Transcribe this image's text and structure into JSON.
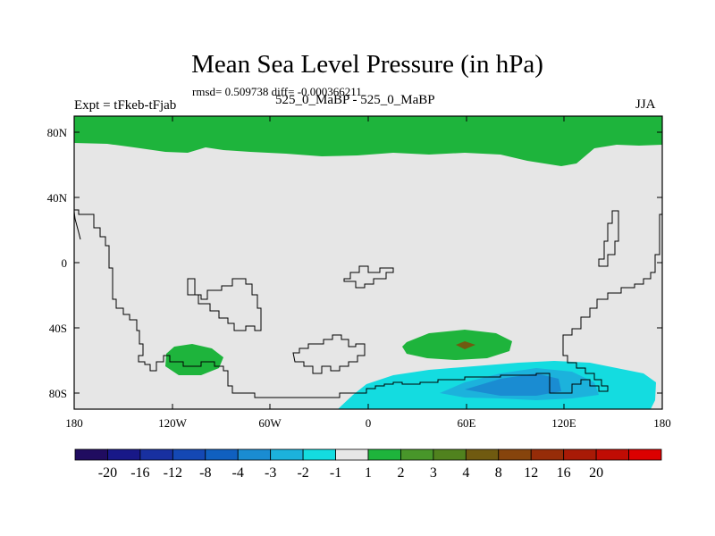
{
  "title": "Mean Sea Level Pressure (in hPa)",
  "stats": "rmsd= 0.509738 diff= -0.000366211",
  "left_label": "Expt = tFkeb-tFjab",
  "center_label": "525_0_MaBP - 525_0_MaBP",
  "right_label": "JJA",
  "map": {
    "projection": "cylindrical-equidistant",
    "background_color": "#e6e6e6",
    "x_ticks": [
      "180",
      "120W",
      "60W",
      "0",
      "60E",
      "120E",
      "180"
    ],
    "y_ticks": [
      "80N",
      "40N",
      "0",
      "40S",
      "80S"
    ]
  },
  "colorbar": {
    "colors": [
      "#200c60",
      "#181888",
      "#1830a0",
      "#1448b4",
      "#1060c0",
      "#1a8cd2",
      "#1cb2dc",
      "#14dce0",
      "#e6e6e6",
      "#1eb43c",
      "#48962a",
      "#50821e",
      "#705a10",
      "#86440c",
      "#962c08",
      "#a81a06",
      "#c00c04",
      "#dc0000"
    ],
    "labels": [
      "-20",
      "-16",
      "-12",
      "-8",
      "-4",
      "-3",
      "-2",
      "-1",
      "1",
      "2",
      "3",
      "4",
      "8",
      "12",
      "16",
      "20"
    ]
  },
  "legend_colors": {
    "green_1_2": "#1eb43c",
    "green_2_3": "#48962a",
    "cyan_m2_m1": "#14dce0",
    "blue_m3_m2": "#1cb2dc",
    "blue_m4_m3": "#1a8cd2",
    "brown_4_8": "#705a10"
  }
}
